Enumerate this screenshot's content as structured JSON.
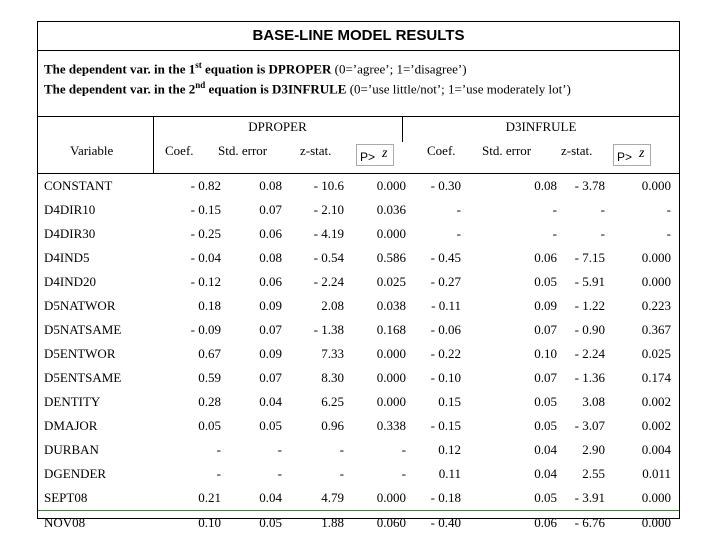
{
  "title": "BASE-LINE MODEL RESULTS",
  "description": {
    "line1_pre": "The dependent var. in the 1",
    "line1_sup": "st",
    "line1_bold": " equation is DPROPER",
    "line1_post": " (0=’agree’; 1=’disagree’)",
    "line2_pre": "The dependent var. in the 2",
    "line2_sup": "nd",
    "line2_bold": " equation is D3INFRULE",
    "line2_post": " (0=’use little/not’; 1=’use moderately lot’)"
  },
  "groups": {
    "left": "DPROPER",
    "right": "D3INFRULE"
  },
  "headers": {
    "variable": "Variable",
    "coef": "Coef.",
    "stderr": "Std. error",
    "zstat": "z-stat.",
    "p": "P>",
    "z": "z"
  },
  "rows": [
    {
      "var": "CONSTANT",
      "c1": "- 0.82",
      "c2": "0.08",
      "c3": "- 10.6",
      "c4": "0.000",
      "c5": "- 0.30",
      "c6": "0.08",
      "c7": "- 3.78",
      "c8": "0.000"
    },
    {
      "var": "D4DIR10",
      "c1": "- 0.15",
      "c2": "0.07",
      "c3": "- 2.10",
      "c4": "0.036",
      "c5": "-",
      "c6": "-",
      "c7": "-",
      "c8": "-"
    },
    {
      "var": "D4DIR30",
      "c1": "- 0.25",
      "c2": "0.06",
      "c3": "- 4.19",
      "c4": "0.000",
      "c5": "-",
      "c6": "-",
      "c7": "-",
      "c8": "-"
    },
    {
      "var": "D4IND5",
      "c1": "- 0.04",
      "c2": "0.08",
      "c3": "- 0.54",
      "c4": "0.586",
      "c5": "- 0.45",
      "c6": "0.06",
      "c7": "- 7.15",
      "c8": "0.000"
    },
    {
      "var": "D4IND20",
      "c1": "- 0.12",
      "c2": "0.06",
      "c3": "- 2.24",
      "c4": "0.025",
      "c5": "- 0.27",
      "c6": "0.05",
      "c7": "- 5.91",
      "c8": "0.000"
    },
    {
      "var": "D5NATWOR",
      "c1": "0.18",
      "c2": "0.09",
      "c3": "2.08",
      "c4": "0.038",
      "c5": "- 0.11",
      "c6": "0.09",
      "c7": "- 1.22",
      "c8": "0.223"
    },
    {
      "var": "D5NATSAME",
      "c1": "- 0.09",
      "c2": "0.07",
      "c3": "- 1.38",
      "c4": "0.168",
      "c5": "- 0.06",
      "c6": "0.07",
      "c7": "- 0.90",
      "c8": "0.367"
    },
    {
      "var": "D5ENTWOR",
      "c1": "0.67",
      "c2": "0.09",
      "c3": "7.33",
      "c4": "0.000",
      "c5": "- 0.22",
      "c6": "0.10",
      "c7": "- 2.24",
      "c8": "0.025"
    },
    {
      "var": "D5ENTSAME",
      "c1": "0.59",
      "c2": "0.07",
      "c3": "8.30",
      "c4": "0.000",
      "c5": "- 0.10",
      "c6": "0.07",
      "c7": "- 1.36",
      "c8": "0.174"
    },
    {
      "var": "DENTITY",
      "c1": "0.28",
      "c2": "0.04",
      "c3": "6.25",
      "c4": "0.000",
      "c5": "0.15",
      "c6": "0.05",
      "c7": "3.08",
      "c8": "0.002"
    },
    {
      "var": "DMAJOR",
      "c1": "0.05",
      "c2": "0.05",
      "c3": "0.96",
      "c4": "0.338",
      "c5": "- 0.15",
      "c6": "0.05",
      "c7": "- 3.07",
      "c8": "0.002"
    },
    {
      "var": "DURBAN",
      "c1": "-",
      "c2": "-",
      "c3": "-",
      "c4": "-",
      "c5": "0.12",
      "c6": "0.04",
      "c7": "2.90",
      "c8": "0.004"
    },
    {
      "var": "DGENDER",
      "c1": "-",
      "c2": "-",
      "c3": "-",
      "c4": "-",
      "c5": "0.11",
      "c6": "0.04",
      "c7": "2.55",
      "c8": "0.011"
    },
    {
      "var": "SEPT08",
      "c1": "0.21",
      "c2": "0.04",
      "c3": "4.79",
      "c4": "0.000",
      "c5": "- 0.18",
      "c6": "0.05",
      "c7": "- 3.91",
      "c8": "0.000"
    },
    {
      "var": "NOV08",
      "c1": "0.10",
      "c2": "0.05",
      "c3": "1.88",
      "c4": "0.060",
      "c5": "- 0.40",
      "c6": "0.06",
      "c7": "- 6.76",
      "c8": "0.000"
    }
  ]
}
